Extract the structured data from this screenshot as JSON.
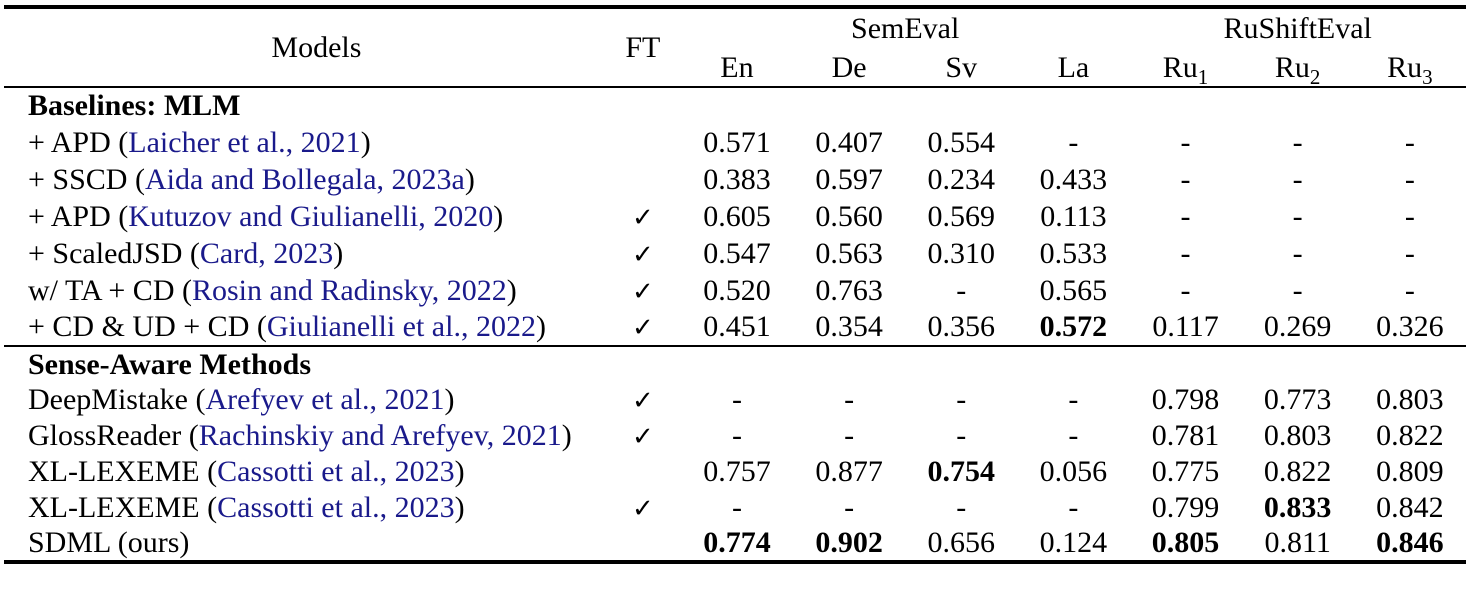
{
  "colors": {
    "citation": "#1a1a8b",
    "text": "#000000",
    "rule": "#000000"
  },
  "table": {
    "check_symbol": "✓",
    "header": {
      "models_label": "Models",
      "ft_label": "FT",
      "groups": [
        {
          "label": "SemEval",
          "span": 4
        },
        {
          "label": "RuShiftEval",
          "span": 3
        }
      ],
      "columns": [
        {
          "label": "En",
          "sub": ""
        },
        {
          "label": "De",
          "sub": ""
        },
        {
          "label": "Sv",
          "sub": ""
        },
        {
          "label": "La",
          "sub": ""
        },
        {
          "label": "Ru",
          "sub": "1"
        },
        {
          "label": "Ru",
          "sub": "2"
        },
        {
          "label": "Ru",
          "sub": "3"
        }
      ]
    },
    "sections": [
      {
        "title": "Baselines: MLM",
        "rows": [
          {
            "pre": "+ APD (",
            "cite": "Laicher et al., 2021",
            "post": ")",
            "ft": false,
            "values": [
              {
                "v": "0.571",
                "b": false
              },
              {
                "v": "0.407",
                "b": false
              },
              {
                "v": "0.554",
                "b": false
              },
              {
                "v": "-",
                "b": false
              },
              {
                "v": "-",
                "b": false
              },
              {
                "v": "-",
                "b": false
              },
              {
                "v": "-",
                "b": false
              }
            ]
          },
          {
            "pre": "+ SSCD (",
            "cite": "Aida and Bollegala, 2023a",
            "post": ")",
            "ft": false,
            "values": [
              {
                "v": "0.383",
                "b": false
              },
              {
                "v": "0.597",
                "b": false
              },
              {
                "v": "0.234",
                "b": false
              },
              {
                "v": "0.433",
                "b": false
              },
              {
                "v": "-",
                "b": false
              },
              {
                "v": "-",
                "b": false
              },
              {
                "v": "-",
                "b": false
              }
            ]
          },
          {
            "pre": "+ APD (",
            "cite": "Kutuzov and Giulianelli, 2020",
            "post": ")",
            "ft": true,
            "values": [
              {
                "v": "0.605",
                "b": false
              },
              {
                "v": "0.560",
                "b": false
              },
              {
                "v": "0.569",
                "b": false
              },
              {
                "v": "0.113",
                "b": false
              },
              {
                "v": "-",
                "b": false
              },
              {
                "v": "-",
                "b": false
              },
              {
                "v": "-",
                "b": false
              }
            ]
          },
          {
            "pre": "+ ScaledJSD (",
            "cite": "Card, 2023",
            "post": ")",
            "ft": true,
            "values": [
              {
                "v": "0.547",
                "b": false
              },
              {
                "v": "0.563",
                "b": false
              },
              {
                "v": "0.310",
                "b": false
              },
              {
                "v": "0.533",
                "b": false
              },
              {
                "v": "-",
                "b": false
              },
              {
                "v": "-",
                "b": false
              },
              {
                "v": "-",
                "b": false
              }
            ]
          },
          {
            "pre": "w/ TA + CD (",
            "cite": "Rosin and Radinsky, 2022",
            "post": ")",
            "ft": true,
            "values": [
              {
                "v": "0.520",
                "b": false
              },
              {
                "v": "0.763",
                "b": false
              },
              {
                "v": "-",
                "b": false
              },
              {
                "v": "0.565",
                "b": false
              },
              {
                "v": "-",
                "b": false
              },
              {
                "v": "-",
                "b": false
              },
              {
                "v": "-",
                "b": false
              }
            ]
          },
          {
            "pre": "+ CD & UD + CD (",
            "cite": "Giulianelli et al., 2022",
            "post": ")",
            "ft": true,
            "values": [
              {
                "v": "0.451",
                "b": false
              },
              {
                "v": "0.354",
                "b": false
              },
              {
                "v": "0.356",
                "b": false
              },
              {
                "v": "0.572",
                "b": true
              },
              {
                "v": "0.117",
                "b": false
              },
              {
                "v": "0.269",
                "b": false
              },
              {
                "v": "0.326",
                "b": false
              }
            ]
          }
        ]
      },
      {
        "title": "Sense-Aware Methods",
        "rows": [
          {
            "pre": "DeepMistake (",
            "cite": "Arefyev et al., 2021",
            "post": ")",
            "ft": true,
            "values": [
              {
                "v": "-",
                "b": false
              },
              {
                "v": "-",
                "b": false
              },
              {
                "v": "-",
                "b": false
              },
              {
                "v": "-",
                "b": false
              },
              {
                "v": "0.798",
                "b": false
              },
              {
                "v": "0.773",
                "b": false
              },
              {
                "v": "0.803",
                "b": false
              }
            ]
          },
          {
            "pre": "GlossReader (",
            "cite": "Rachinskiy and Arefyev, 2021",
            "post": ")",
            "ft": true,
            "values": [
              {
                "v": "-",
                "b": false
              },
              {
                "v": "-",
                "b": false
              },
              {
                "v": "-",
                "b": false
              },
              {
                "v": "-",
                "b": false
              },
              {
                "v": "0.781",
                "b": false
              },
              {
                "v": "0.803",
                "b": false
              },
              {
                "v": "0.822",
                "b": false
              }
            ]
          },
          {
            "pre": "XL-LEXEME (",
            "cite": "Cassotti et al., 2023",
            "post": ")",
            "ft": false,
            "values": [
              {
                "v": "0.757",
                "b": false
              },
              {
                "v": "0.877",
                "b": false
              },
              {
                "v": "0.754",
                "b": true
              },
              {
                "v": "0.056",
                "b": false
              },
              {
                "v": "0.775",
                "b": false
              },
              {
                "v": "0.822",
                "b": false
              },
              {
                "v": "0.809",
                "b": false
              }
            ]
          },
          {
            "pre": "XL-LEXEME (",
            "cite": "Cassotti et al., 2023",
            "post": ")",
            "ft": true,
            "values": [
              {
                "v": "-",
                "b": false
              },
              {
                "v": "-",
                "b": false
              },
              {
                "v": "-",
                "b": false
              },
              {
                "v": "-",
                "b": false
              },
              {
                "v": "0.799",
                "b": false
              },
              {
                "v": "0.833",
                "b": true
              },
              {
                "v": "0.842",
                "b": false
              }
            ]
          },
          {
            "pre": "SDML (ours)",
            "cite": "",
            "post": "",
            "ft": false,
            "values": [
              {
                "v": "0.774",
                "b": true
              },
              {
                "v": "0.902",
                "b": true
              },
              {
                "v": "0.656",
                "b": false
              },
              {
                "v": "0.124",
                "b": false
              },
              {
                "v": "0.805",
                "b": true
              },
              {
                "v": "0.811",
                "b": false
              },
              {
                "v": "0.846",
                "b": true
              }
            ]
          }
        ]
      }
    ]
  }
}
